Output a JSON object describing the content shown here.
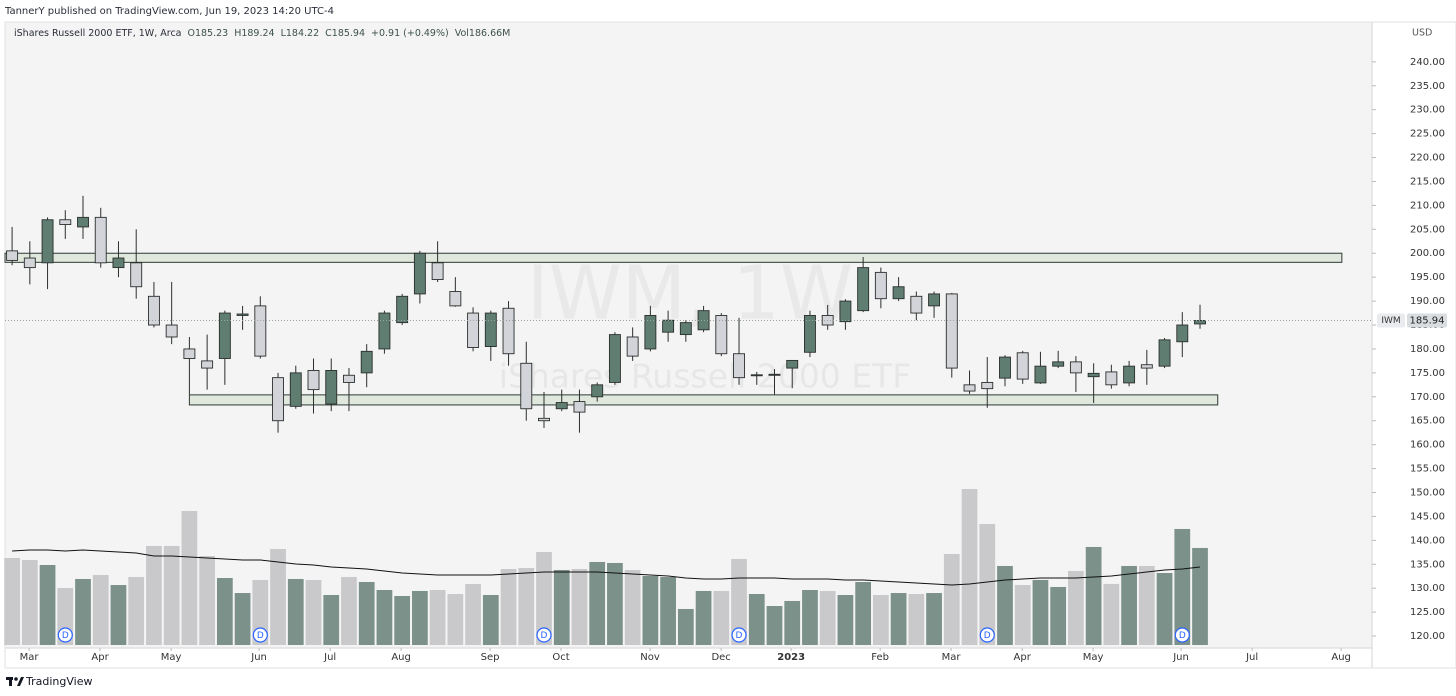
{
  "header": {
    "publisher": "TannerY published on TradingView.com, Jun 19, 2023 14:20 UTC-4"
  },
  "footer": {
    "brand": "TradingView"
  },
  "chart_data": {
    "type": "candlestick",
    "symbol": "IWM",
    "watermark": {
      "title": "IWM, 1W",
      "subtitle": "iShares Russell 2000 ETF"
    },
    "legend": {
      "description": "iShares Russell 2000 ETF, 1W, Arca",
      "items": [
        "O185.23",
        "H189.24",
        "L184.22",
        "C185.94",
        "+0.91 (+0.49%)",
        "Vol186.66M"
      ]
    },
    "currency": "USD",
    "open": [
      200.5,
      199,
      198,
      207,
      205.5,
      207.5,
      197,
      198,
      191,
      185,
      180,
      177.5,
      178,
      187,
      189,
      174,
      168,
      175.5,
      168.5,
      174.5,
      175,
      180,
      185.5,
      191.5,
      198,
      192,
      187.5,
      180.5,
      188.5,
      177,
      165.5,
      167.5,
      169,
      170,
      173,
      182.5,
      180,
      183.5,
      183,
      184,
      187,
      179,
      174.4,
      174.5,
      176,
      179.3,
      187,
      185.7,
      188,
      196,
      190.5,
      191,
      189,
      191.5,
      172.5,
      173,
      173.9,
      179.2,
      172.9,
      176.4,
      177.3,
      174.2,
      175.2,
      172.9,
      176.7,
      176.4,
      181.5,
      185.23
    ],
    "high": [
      205.5,
      202.5,
      207.5,
      209,
      212,
      209.5,
      202.5,
      205,
      194,
      194,
      182.5,
      183,
      188,
      189,
      191,
      175,
      176.5,
      178,
      178,
      176,
      181,
      188,
      191.5,
      200.5,
      202.5,
      195,
      188.7,
      188,
      190,
      181.5,
      171,
      171.5,
      171.5,
      173,
      183.5,
      184.5,
      189,
      188,
      186,
      189,
      187.5,
      186.5,
      175.2,
      175.8,
      177.6,
      188,
      189.2,
      190.4,
      199.2,
      197,
      195,
      192,
      192,
      191.7,
      175.5,
      178.3,
      178.7,
      179.6,
      179.4,
      179.6,
      178.5,
      177,
      176.7,
      177.5,
      179.8,
      182.3,
      187.7,
      189.24
    ],
    "low": [
      197.5,
      193.5,
      192.5,
      203,
      203,
      197,
      195,
      190.5,
      184.5,
      181,
      170.5,
      171.5,
      172.5,
      184,
      178,
      162.5,
      167.5,
      166.5,
      167,
      167,
      172,
      179,
      185,
      189.5,
      194,
      188.8,
      179.5,
      177.5,
      176.5,
      165,
      163.5,
      167,
      162.5,
      169,
      172.5,
      177.5,
      179.5,
      181.5,
      181.5,
      183.5,
      178.5,
      172.5,
      172.5,
      170.5,
      171.8,
      178.3,
      184,
      184,
      187.7,
      188.5,
      190,
      186,
      186.5,
      174,
      170.6,
      167.7,
      172.2,
      172.7,
      172.7,
      176,
      171,
      168.7,
      171.7,
      172.2,
      172.5,
      176,
      178.3,
      184.22
    ],
    "close": [
      198.5,
      197,
      207,
      206,
      207.5,
      198,
      199,
      193,
      185,
      182.5,
      178,
      176,
      187.5,
      187.3,
      178.5,
      165,
      175,
      171.5,
      175.5,
      173,
      179.5,
      187.5,
      191,
      200,
      194.5,
      189,
      180.3,
      187.5,
      179,
      167.5,
      165,
      168.8,
      166.8,
      172.5,
      183,
      178.5,
      187,
      186,
      185.5,
      188,
      179,
      174,
      174.6,
      174.7,
      177.6,
      187,
      185,
      190,
      197,
      190.5,
      193,
      187.5,
      191.5,
      176,
      171.2,
      171.7,
      178.3,
      173.7,
      176.4,
      177.3,
      175,
      174.9,
      172.5,
      176.4,
      176,
      181.9,
      185,
      185.94
    ],
    "volume": [
      167.4,
      163.5,
      153.9,
      109.7,
      127.0,
      134.7,
      115.4,
      130.8,
      190.5,
      190.5,
      257.8,
      171.2,
      128.9,
      100.0,
      125.1,
      184.7,
      127.0,
      125.1,
      96.2,
      130.8,
      121.2,
      105.8,
      94.3,
      103.9,
      105.8,
      98.1,
      117.4,
      96.2,
      146.2,
      148.1,
      178.9,
      144.3,
      146.2,
      159.7,
      157.8,
      144.3,
      132.8,
      130.8,
      69.3,
      103.9,
      103.9,
      165.5,
      98.1,
      75.0,
      84.7,
      105.8,
      103.9,
      96.2,
      121.2,
      96.2,
      100.0,
      98.1,
      100.0,
      175.1,
      300.1,
      232.8,
      152.0,
      115.4,
      125.1,
      111.6,
      142.4,
      188.6,
      117.4,
      152.0,
      152.0,
      138.5,
      223.2,
      186.66
    ],
    "volume_ma": [
      180.9,
      182.8,
      182.8,
      180.9,
      182.8,
      180.9,
      178.9,
      177.0,
      171.2,
      171.2,
      169.3,
      167.4,
      165.5,
      163.5,
      163.5,
      159.7,
      155.8,
      153.9,
      150.1,
      148.1,
      146.2,
      142.4,
      138.5,
      136.6,
      134.7,
      134.7,
      134.7,
      134.7,
      136.6,
      138.5,
      140.5,
      140.5,
      140.5,
      140.5,
      138.5,
      136.6,
      134.7,
      132.8,
      128.9,
      127.0,
      127.0,
      128.9,
      128.9,
      128.9,
      127.0,
      127.0,
      127.0,
      125.1,
      125.1,
      123.1,
      121.2,
      119.3,
      117.4,
      115.4,
      117.4,
      121.2,
      125.1,
      127.0,
      128.9,
      128.9,
      128.9,
      130.8,
      132.8,
      136.6,
      140.5,
      144.3,
      146.2,
      150.1
    ],
    "up_color": "#5f7d71",
    "down_color": "#d2d4d9",
    "volume_up_color": "#7b918a",
    "volume_down_color": "#c9c9cc",
    "volume_ma_color": "#111111",
    "zones": [
      {
        "x": [
          -0.4,
          75.0
        ],
        "y": [
          198.1,
          200.0
        ]
      },
      {
        "x": [
          10.0,
          68.0
        ],
        "y": [
          168.3,
          170.4
        ]
      }
    ],
    "zone_color": "#e0e8dd",
    "dividend_label": "D",
    "dividend_weeks": [
      3,
      14,
      30,
      41,
      55,
      66
    ],
    "xlim": [
      -0.4,
      76.7
    ],
    "xticks": [
      {
        "value": 0.96,
        "label": "Mar"
      },
      {
        "value": 4.96,
        "label": "Apr"
      },
      {
        "value": 8.97,
        "label": "May"
      },
      {
        "value": 13.93,
        "label": "Jun"
      },
      {
        "value": 17.94,
        "label": "Jul"
      },
      {
        "value": 21.94,
        "label": "Aug"
      },
      {
        "value": 26.96,
        "label": "Sep"
      },
      {
        "value": 30.96,
        "label": "Oct"
      },
      {
        "value": 35.98,
        "label": "Nov"
      },
      {
        "value": 39.99,
        "label": "Dec"
      },
      {
        "value": 43.94,
        "label": "2023",
        "bold": true
      },
      {
        "value": 48.96,
        "label": "Feb"
      },
      {
        "value": 52.96,
        "label": "Mar"
      },
      {
        "value": 56.97,
        "label": "Apr"
      },
      {
        "value": 60.97,
        "label": "May"
      },
      {
        "value": 65.93,
        "label": "Jun"
      },
      {
        "value": 69.94,
        "label": "Jul"
      },
      {
        "value": 74.96,
        "label": "Aug"
      }
    ],
    "ylim": [
      117.5,
      247.7
    ],
    "yticks": [
      {
        "value": 120,
        "label": "120.00"
      },
      {
        "value": 125,
        "label": "125.00"
      },
      {
        "value": 130,
        "label": "130.00"
      },
      {
        "value": 135,
        "label": "135.00"
      },
      {
        "value": 140,
        "label": "140.00"
      },
      {
        "value": 145,
        "label": "145.00"
      },
      {
        "value": 150,
        "label": "150.00"
      },
      {
        "value": 155,
        "label": "155.00"
      },
      {
        "value": 160,
        "label": "160.00"
      },
      {
        "value": 165,
        "label": "165.00"
      },
      {
        "value": 170,
        "label": "170.00"
      },
      {
        "value": 175,
        "label": "175.00"
      },
      {
        "value": 180,
        "label": "180.00"
      },
      {
        "value": 185,
        "label": "185.00"
      },
      {
        "value": 190,
        "label": "190.00"
      },
      {
        "value": 195,
        "label": "195.00"
      },
      {
        "value": 200,
        "label": "200.00"
      },
      {
        "value": 205,
        "label": "205.00"
      },
      {
        "value": 210,
        "label": "210.00"
      },
      {
        "value": 215,
        "label": "215.00"
      },
      {
        "value": 220,
        "label": "220.00"
      },
      {
        "value": 225,
        "label": "225.00"
      },
      {
        "value": 230,
        "label": "230.00"
      },
      {
        "value": 235,
        "label": "235.00"
      },
      {
        "value": 240,
        "label": "240.00"
      }
    ]
  }
}
